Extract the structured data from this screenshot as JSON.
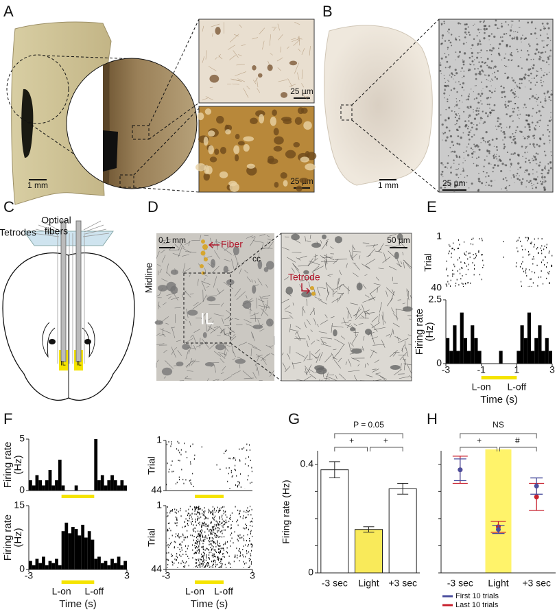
{
  "panel_labels": [
    "A",
    "B",
    "C",
    "D",
    "E",
    "F",
    "G",
    "H"
  ],
  "panel_a": {
    "scale_bars": [
      "1 mm",
      "25 µm",
      "25 µm"
    ]
  },
  "panel_b": {
    "scale_bars": [
      "1 mm",
      "25 µm"
    ]
  },
  "panel_c": {
    "tetrodes": "Tetrodes",
    "optical_fibers": [
      "Optical",
      "fibers"
    ],
    "regions": [
      "IL",
      "IL"
    ]
  },
  "panel_d": {
    "scale_bars": [
      "0.1 mm",
      "50 µm"
    ],
    "fiber": "Fiber",
    "midline": "Midline",
    "cc": "cc",
    "region": "IL",
    "tetrode": "Tetrode"
  },
  "chart_data": [
    {
      "type": "histogram",
      "ylabel": [
        "Firing rate",
        "(Hz)"
      ],
      "bins": [
        -3,
        -2.8,
        -2.6,
        -2.4,
        -2.2,
        -2,
        -1.8,
        -1.6,
        -1.4,
        -1.2,
        -1,
        -0.8,
        -0.6,
        -0.4,
        -0.2,
        0,
        0.2,
        0.4,
        0.6,
        0.8,
        1,
        1.2,
        1.4,
        1.6,
        1.8,
        2,
        2.2,
        2.4,
        2.6,
        2.8,
        3
      ],
      "values": [
        1.0,
        0.5,
        1.5,
        0.5,
        2.0,
        1.0,
        0.5,
        1.5,
        1.0,
        0.5,
        0,
        0,
        0,
        0,
        0,
        0.5,
        0,
        0,
        0,
        0,
        0.5,
        1.5,
        1.0,
        2.0,
        0.5,
        1.0,
        1.5,
        0.5,
        1.0,
        0.5
      ],
      "color": "#000000",
      "xlim": [
        -3,
        3
      ],
      "xticks": [
        -3,
        -1,
        1,
        3
      ],
      "ylim": [
        0,
        2.5
      ],
      "yticks": [
        0,
        2.5
      ],
      "light": [
        -1,
        1
      ],
      "light_color": "#f5e400",
      "light_labels": [
        "L-on",
        "L-off"
      ],
      "xlabel": "Time (s)"
    },
    {
      "type": "histogram",
      "ylabel": [
        "Firing rate",
        "(Hz)"
      ],
      "bins": [
        -3,
        -2.8,
        -2.6,
        -2.4,
        -2.2,
        -2,
        -1.8,
        -1.6,
        -1.4,
        -1.2,
        -1,
        -0.8,
        -0.6,
        -0.4,
        -0.2,
        0,
        0.2,
        0.4,
        0.6,
        0.8,
        1,
        1.2,
        1.4,
        1.6,
        1.8,
        2,
        2.2,
        2.4,
        2.6,
        2.8,
        3
      ],
      "values": [
        1.0,
        0.5,
        1.5,
        1.0,
        0.5,
        1.0,
        2.0,
        0.5,
        1.0,
        3.0,
        0.5,
        0,
        0,
        0,
        0.5,
        0,
        0,
        0,
        0,
        0,
        5.0,
        1.0,
        1.5,
        0.5,
        1.0,
        1.5,
        1.0,
        0.5,
        1.0,
        0.5
      ],
      "color": "#000000",
      "xlim": [
        -3,
        3
      ],
      "ylim": [
        0,
        5
      ],
      "yticks": [
        0,
        5
      ],
      "light": [
        -1,
        1
      ],
      "light_color": "#f5e400"
    },
    {
      "type": "histogram",
      "ylabel": [
        "Firing rate",
        "(Hz)"
      ],
      "bins": [
        -3,
        -2.8,
        -2.6,
        -2.4,
        -2.2,
        -2,
        -1.8,
        -1.6,
        -1.4,
        -1.2,
        -1,
        -0.8,
        -0.6,
        -0.4,
        -0.2,
        0,
        0.2,
        0.4,
        0.6,
        0.8,
        1,
        1.2,
        1.4,
        1.6,
        1.8,
        2,
        2.2,
        2.4,
        2.6,
        2.8,
        3
      ],
      "values": [
        2.0,
        1.0,
        2.5,
        1.5,
        3.0,
        1.0,
        2.0,
        1.5,
        2.5,
        1.0,
        9.0,
        11.0,
        8.5,
        10.0,
        9.5,
        8.0,
        10.5,
        7.5,
        9.0,
        7.0,
        2.5,
        3.0,
        1.5,
        2.0,
        1.0,
        2.5,
        1.5,
        3.0,
        1.0,
        2.0
      ],
      "color": "#000000",
      "xlim": [
        -3,
        3
      ],
      "xticks": [
        -3,
        3
      ],
      "ylim": [
        0,
        15
      ],
      "yticks": [
        0,
        15
      ],
      "light": [
        -1,
        1
      ],
      "light_color": "#f5e400",
      "light_labels": [
        "L-on",
        "L-off"
      ],
      "xlabel": "Time (s)"
    },
    {
      "type": "raster",
      "ylabel": "Trial",
      "ylim": [
        40,
        1
      ],
      "yticks": [
        1,
        40
      ]
    },
    {
      "type": "raster",
      "ylabel": "Trial",
      "xlim": [
        -3,
        3
      ],
      "ylim": [
        44,
        1
      ],
      "yticks": [
        1,
        44
      ],
      "light": [
        -1,
        1
      ],
      "light_color": "#f5e400"
    },
    {
      "type": "raster",
      "ylabel": "Trial",
      "xlim": [
        -3,
        3
      ],
      "xticks": [
        -3,
        3
      ],
      "ylim": [
        44,
        1
      ],
      "yticks": [
        1,
        44
      ],
      "light": [
        -1,
        1
      ],
      "light_color": "#f5e400",
      "light_labels": [
        "L-on",
        "L-off"
      ],
      "xlabel": "Time (s)"
    },
    {
      "type": "bar",
      "ylabel": "Firing rate (Hz)",
      "categories": [
        "-3 sec",
        "Light",
        "+3 sec"
      ],
      "values": [
        0.38,
        0.16,
        0.31
      ],
      "errors": [
        0.03,
        0.01,
        0.02
      ],
      "colors": [
        "#ffffff",
        "#f9ea5a",
        "#ffffff"
      ],
      "ylim": [
        0,
        0.45
      ],
      "yticks": [
        0,
        0.4
      ],
      "yminor": [
        0.1,
        0.2,
        0.3
      ],
      "comparisons": [
        "P = 0.05",
        "+",
        "+"
      ]
    },
    {
      "type": "dot",
      "categories": [
        "-3 sec",
        "Light",
        "+3 sec"
      ],
      "series": [
        {
          "name": "First 10 trials",
          "color": "#4b4f9e",
          "values": [
            0.38,
            0.16,
            0.32
          ],
          "errors": [
            0.04,
            0.015,
            0.03
          ]
        },
        {
          "name": "Last 10 trials",
          "color": "#c8202e",
          "values": [
            0.38,
            0.17,
            0.28
          ],
          "errors": [
            0.05,
            0.02,
            0.05
          ]
        }
      ],
      "band_color": "#fff36a",
      "ylim": [
        0,
        0.45
      ],
      "yminor": [
        0,
        0.1,
        0.2,
        0.3,
        0.4
      ],
      "comparisons": [
        "NS",
        "+",
        "#"
      ]
    }
  ]
}
